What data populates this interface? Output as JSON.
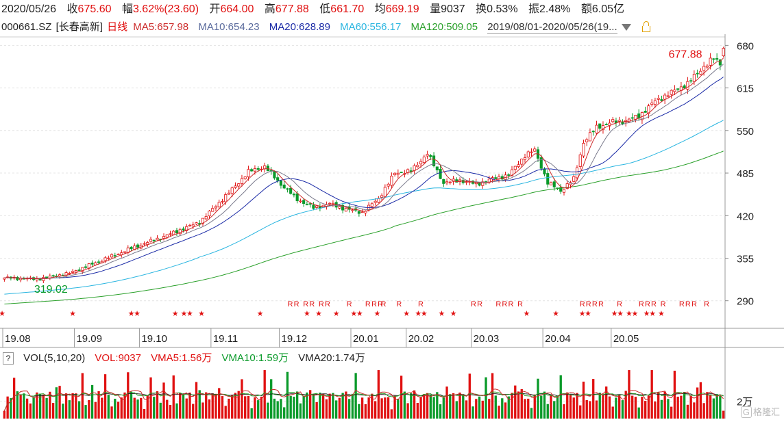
{
  "quote": {
    "date": "2020/05/26",
    "close_label": "收",
    "close": "675.60",
    "change_label": "幅",
    "change": "3.62%(23.60)",
    "open_label": "开",
    "open": "664.00",
    "high_label": "高",
    "high": "677.88",
    "low_label": "低",
    "low": "661.70",
    "avg_label": "均",
    "avg": "669.19",
    "vol_label": "量",
    "vol": "9037",
    "turnover_label": "换",
    "turnover": "0.53%",
    "amplitude_label": "振",
    "amplitude": "2.48%",
    "amount_label": "额",
    "amount": "6.05亿"
  },
  "ma_bar": {
    "code": "000661.SZ",
    "name": "[长春高新]",
    "period": "日线",
    "ma5": "MA5:657.98",
    "ma10": "MA10:654.23",
    "ma20": "MA20:628.89",
    "ma60": "MA60:556.17",
    "ma120": "MA120:509.05",
    "range": "2019/08/01-2020/05/26(19..."
  },
  "vol_bar": {
    "help": "?",
    "title": "VOL(5,10,20)",
    "vol": "VOL:9037",
    "vma5": "VMA5:1.56万",
    "vma10": "VMA10:1.59万",
    "vma20": "VMA20:1.74万"
  },
  "watermark": {
    "logo": "G",
    "text": "格隆汇"
  },
  "colors": {
    "up": "#e01010",
    "down": "#0a9a2a",
    "ma5": "#cc2a2a",
    "ma10": "#7a7a8c",
    "ma20": "#1a2aa6",
    "ma60": "#29b5e0",
    "ma120": "#2aa02a",
    "vma5": "#cc2a2a",
    "vma10": "#2aa02a",
    "vma20": "#222222",
    "grid": "#e4e4e4",
    "axis": "#555555",
    "star": "#e01010"
  },
  "chart_data": [
    {
      "type": "candlestick",
      "title": "000661.SZ [长春高新] 日线",
      "x_range": [
        "2019/08/01",
        "2020/05/26"
      ],
      "x_tick_labels": [
        "19.08",
        "19.09",
        "19.10",
        "19.11",
        "19.12",
        "20.01",
        "20.02",
        "20.03",
        "20.04",
        "20.05"
      ],
      "y_tick_labels": [
        680,
        615,
        550,
        485,
        420,
        355,
        290
      ],
      "ylim": [
        250,
        695
      ],
      "annotations": [
        {
          "text": "677.88",
          "date": "2020/05/26",
          "value": 677.88
        },
        {
          "text": "319.02",
          "date": "2019/08/05",
          "value": 319.02
        }
      ],
      "signal_labels": {
        "star": "★",
        "r": "R"
      },
      "anchors": [
        {
          "t": 0,
          "c": 325
        },
        {
          "t": 10,
          "c": 323
        },
        {
          "t": 20,
          "c": 332
        },
        {
          "t": 30,
          "c": 352
        },
        {
          "t": 40,
          "c": 372
        },
        {
          "t": 50,
          "c": 390
        },
        {
          "t": 60,
          "c": 410
        },
        {
          "t": 70,
          "c": 460
        },
        {
          "t": 75,
          "c": 487
        },
        {
          "t": 80,
          "c": 495
        },
        {
          "t": 85,
          "c": 468
        },
        {
          "t": 90,
          "c": 445
        },
        {
          "t": 95,
          "c": 432
        },
        {
          "t": 100,
          "c": 438
        },
        {
          "t": 105,
          "c": 430
        },
        {
          "t": 110,
          "c": 425
        },
        {
          "t": 115,
          "c": 446
        },
        {
          "t": 120,
          "c": 485
        },
        {
          "t": 125,
          "c": 488
        },
        {
          "t": 130,
          "c": 515
        },
        {
          "t": 135,
          "c": 470
        },
        {
          "t": 140,
          "c": 474
        },
        {
          "t": 145,
          "c": 468
        },
        {
          "t": 150,
          "c": 476
        },
        {
          "t": 155,
          "c": 482
        },
        {
          "t": 160,
          "c": 512
        },
        {
          "t": 163,
          "c": 520
        },
        {
          "t": 167,
          "c": 470
        },
        {
          "t": 171,
          "c": 458
        },
        {
          "t": 175,
          "c": 476
        },
        {
          "t": 178,
          "c": 532
        },
        {
          "t": 182,
          "c": 555
        },
        {
          "t": 187,
          "c": 563
        },
        {
          "t": 191,
          "c": 565
        },
        {
          "t": 195,
          "c": 572
        },
        {
          "t": 200,
          "c": 595
        },
        {
          "t": 205,
          "c": 608
        },
        {
          "t": 210,
          "c": 622
        },
        {
          "t": 215,
          "c": 648
        },
        {
          "t": 218,
          "c": 660
        },
        {
          "t": 220,
          "c": 652
        },
        {
          "t": 221,
          "c": 675.6
        }
      ],
      "last_bar": {
        "date": "2020/05/26",
        "open": 664.0,
        "high": 677.88,
        "low": 661.7,
        "close": 675.6
      }
    },
    {
      "type": "bar",
      "title": "VOL(5,10,20)",
      "y_tick_labels": [
        "2万"
      ],
      "ylim": [
        0,
        60000
      ],
      "last_volume": 9037,
      "series": [
        {
          "name": "VMA5",
          "value": 15600
        },
        {
          "name": "VMA10",
          "value": 15900
        },
        {
          "name": "VMA20",
          "value": 17400
        }
      ]
    }
  ]
}
